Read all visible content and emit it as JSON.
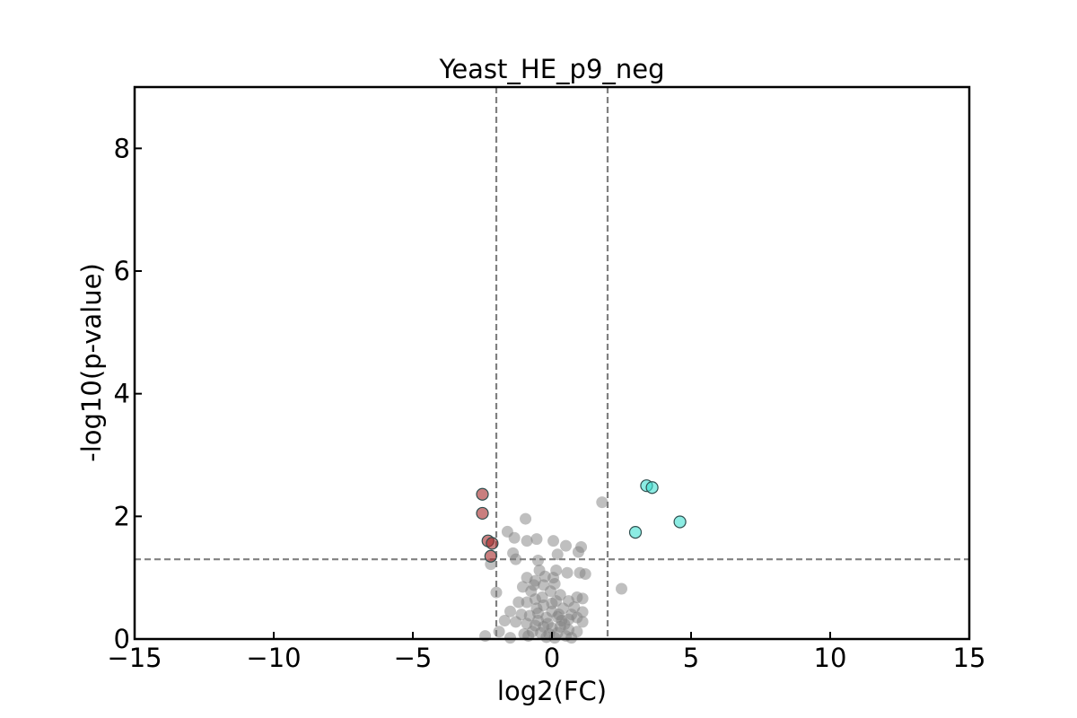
{
  "chart_data": {
    "type": "scatter",
    "title": "Yeast_HE_p9_neg",
    "xlabel": "log2(FC)",
    "ylabel": "-log10(p-value)",
    "xlim": [
      -15,
      15
    ],
    "ylim": [
      0,
      9
    ],
    "xticks": [
      -15,
      -10,
      -5,
      0,
      5,
      10,
      15
    ],
    "xtick_labels": [
      "−15",
      "−10",
      "−5",
      "0",
      "5",
      "10",
      "15"
    ],
    "yticks": [
      0,
      2,
      4,
      6,
      8
    ],
    "ytick_labels": [
      "0",
      "2",
      "4",
      "6",
      "8"
    ],
    "grid": false,
    "threshold_lines": {
      "vertical": [
        -2,
        2
      ],
      "horizontal": [
        1.3
      ]
    },
    "colors": {
      "down": "#a52a2a",
      "up": "#40e0d0",
      "ns": "#808080",
      "threshold": "#808080"
    },
    "series": [
      {
        "group": "down",
        "points": [
          [
            -2.5,
            2.36
          ],
          [
            -2.5,
            2.05
          ],
          [
            -2.3,
            1.6
          ],
          [
            -2.15,
            1.56
          ],
          [
            -2.2,
            1.35
          ]
        ]
      },
      {
        "group": "up",
        "points": [
          [
            3.4,
            2.5
          ],
          [
            3.6,
            2.47
          ],
          [
            4.6,
            1.91
          ],
          [
            3.0,
            1.74
          ]
        ]
      },
      {
        "group": "ns",
        "points": [
          [
            1.8,
            2.23
          ],
          [
            -0.95,
            1.96
          ],
          [
            -1.6,
            1.75
          ],
          [
            -1.35,
            1.65
          ],
          [
            -0.9,
            1.6
          ],
          [
            -0.55,
            1.63
          ],
          [
            0.05,
            1.6
          ],
          [
            0.5,
            1.52
          ],
          [
            1.05,
            1.5
          ],
          [
            0.95,
            1.42
          ],
          [
            -1.4,
            1.4
          ],
          [
            -1.3,
            1.3
          ],
          [
            0.2,
            1.38
          ],
          [
            -0.5,
            1.28
          ],
          [
            -2.2,
            1.22
          ],
          [
            -0.45,
            1.12
          ],
          [
            0.15,
            1.12
          ],
          [
            0.55,
            1.08
          ],
          [
            1.0,
            1.08
          ],
          [
            1.2,
            1.06
          ],
          [
            -0.9,
            1.0
          ],
          [
            -0.6,
            0.95
          ],
          [
            -1.05,
            0.85
          ],
          [
            0.1,
            0.9
          ],
          [
            -0.3,
            0.88
          ],
          [
            -0.75,
            0.78
          ],
          [
            0.3,
            0.72
          ],
          [
            0.9,
            0.68
          ],
          [
            1.1,
            0.66
          ],
          [
            0.6,
            0.62
          ],
          [
            2.5,
            0.82
          ],
          [
            -2.0,
            0.76
          ],
          [
            -0.9,
            0.6
          ],
          [
            -0.6,
            0.65
          ],
          [
            -0.3,
            0.55
          ],
          [
            0.0,
            0.58
          ],
          [
            0.4,
            0.5
          ],
          [
            0.8,
            0.52
          ],
          [
            1.1,
            0.44
          ],
          [
            -1.5,
            0.45
          ],
          [
            -1.1,
            0.4
          ],
          [
            -0.8,
            0.38
          ],
          [
            -0.5,
            0.42
          ],
          [
            -0.2,
            0.35
          ],
          [
            0.2,
            0.36
          ],
          [
            0.6,
            0.32
          ],
          [
            0.9,
            0.35
          ],
          [
            1.1,
            0.28
          ],
          [
            -1.7,
            0.3
          ],
          [
            -1.3,
            0.28
          ],
          [
            -0.9,
            0.25
          ],
          [
            -0.6,
            0.22
          ],
          [
            -0.3,
            0.2
          ],
          [
            0.0,
            0.18
          ],
          [
            0.3,
            0.2
          ],
          [
            0.6,
            0.15
          ],
          [
            0.9,
            0.12
          ],
          [
            -0.7,
            0.12
          ],
          [
            -0.4,
            0.1
          ],
          [
            -0.1,
            0.08
          ],
          [
            0.2,
            0.1
          ],
          [
            0.5,
            0.05
          ],
          [
            -1.0,
            0.08
          ],
          [
            -1.9,
            0.12
          ],
          [
            -2.4,
            0.05
          ],
          [
            -1.5,
            0.02
          ],
          [
            -0.2,
            0.03
          ],
          [
            0.1,
            0.02
          ],
          [
            0.7,
            0.02
          ],
          [
            -0.85,
            0.05
          ],
          [
            -0.5,
            0.3
          ],
          [
            0.0,
            0.45
          ],
          [
            0.35,
            0.3
          ],
          [
            -0.35,
            0.68
          ],
          [
            0.15,
            0.62
          ],
          [
            -0.05,
            0.78
          ],
          [
            -0.65,
            0.88
          ],
          [
            0.05,
            1.0
          ],
          [
            -0.15,
            0.25
          ],
          [
            0.45,
            0.24
          ],
          [
            -0.55,
            0.5
          ],
          [
            0.25,
            0.4
          ],
          [
            0.7,
            0.4
          ],
          [
            -1.2,
            0.6
          ],
          [
            -0.25,
            1.02
          ]
        ]
      }
    ]
  }
}
